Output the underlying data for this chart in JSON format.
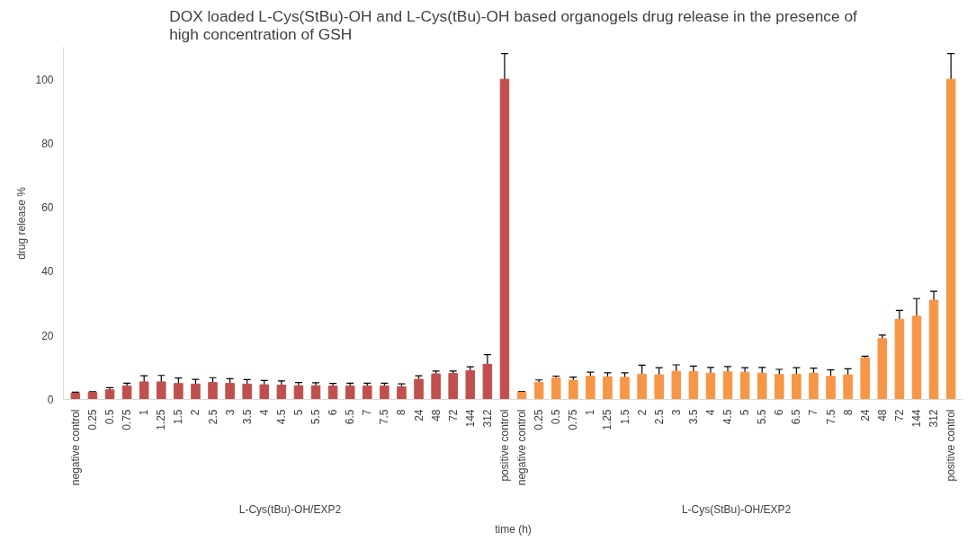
{
  "chart_data": {
    "type": "bar",
    "title": "DOX loaded L-Cys(StBu)-OH and L-Cys(tBu)-OH based organogels drug release in the presence of high concentration of GSH",
    "xlabel": "time (h)",
    "ylabel": "drug release %",
    "annotations": [
      "L-Cys(tBu)-OH/EXP2",
      "L-Cys(StBu)-OH/EXP2"
    ],
    "categories": [
      "negative control",
      "0.25",
      "0.5",
      "0.75",
      "1",
      "1.25",
      "1.5",
      "2",
      "2.5",
      "3",
      "3.5",
      "4",
      "4.5",
      "5",
      "5.5",
      "6",
      "6.5",
      "7",
      "7.5",
      "8",
      "24",
      "48",
      "72",
      "144",
      "312",
      "positive control",
      "negative control",
      "0.25",
      "0.5",
      "0.75",
      "1",
      "1.25",
      "1.5",
      "2",
      "2.5",
      "3",
      "3.5",
      "4",
      "4.5",
      "5",
      "5.5",
      "6",
      "6.5",
      "7",
      "7.5",
      "8",
      "24",
      "48",
      "72",
      "144",
      "312",
      "positive control"
    ],
    "series": [
      {
        "color": "#c0504d",
        "values": [
          2.0,
          2.2,
          3.0,
          4.2,
          5.5,
          5.5,
          5.0,
          4.8,
          5.3,
          5.0,
          4.8,
          4.6,
          4.5,
          4.3,
          4.3,
          4.2,
          4.2,
          4.2,
          4.2,
          4.0,
          6.3,
          8.0,
          8.1,
          9.0,
          11.0,
          100,
          null,
          null,
          null,
          null,
          null,
          null,
          null,
          null,
          null,
          null,
          null,
          null,
          null,
          null,
          null,
          null,
          null,
          null,
          null,
          null,
          null,
          null,
          null,
          null,
          null,
          null
        ],
        "errors": [
          0.3,
          0.2,
          0.7,
          0.9,
          1.9,
          2.0,
          1.7,
          1.5,
          1.5,
          1.5,
          1.4,
          1.3,
          1.3,
          1.0,
          0.9,
          0.8,
          0.9,
          0.9,
          0.9,
          0.9,
          1.1,
          0.9,
          0.8,
          1.2,
          3.0,
          8,
          null,
          null,
          null,
          null,
          null,
          null,
          null,
          null,
          null,
          null,
          null,
          null,
          null,
          null,
          null,
          null,
          null,
          null,
          null,
          null,
          null,
          null,
          null,
          null,
          null,
          null
        ]
      },
      {
        "color": "#f79646",
        "values": [
          null,
          null,
          null,
          null,
          null,
          null,
          null,
          null,
          null,
          null,
          null,
          null,
          null,
          null,
          null,
          null,
          null,
          null,
          null,
          null,
          null,
          null,
          null,
          null,
          null,
          null,
          2.3,
          5.3,
          6.7,
          6.0,
          7.3,
          7.1,
          6.9,
          7.9,
          7.7,
          8.8,
          8.7,
          8.2,
          8.6,
          8.5,
          8.2,
          7.8,
          7.9,
          8.2,
          7.2,
          7.7,
          13.0,
          19.0,
          25.0,
          26.0,
          31.0,
          100
        ],
        "errors": [
          null,
          null,
          null,
          null,
          null,
          null,
          null,
          null,
          null,
          null,
          null,
          null,
          null,
          null,
          null,
          null,
          null,
          null,
          null,
          null,
          null,
          null,
          null,
          null,
          null,
          null,
          0.2,
          0.8,
          0.6,
          1.0,
          1.2,
          1.2,
          1.4,
          2.8,
          2.2,
          2.0,
          1.7,
          1.8,
          1.7,
          1.4,
          1.8,
          1.6,
          2.0,
          1.6,
          2.0,
          1.9,
          0.5,
          1.1,
          2.8,
          5.5,
          2.8,
          8
        ]
      }
    ],
    "ylim": [
      0,
      110
    ],
    "yticks": [
      0,
      20,
      40,
      60,
      80,
      100
    ],
    "grid": false
  }
}
